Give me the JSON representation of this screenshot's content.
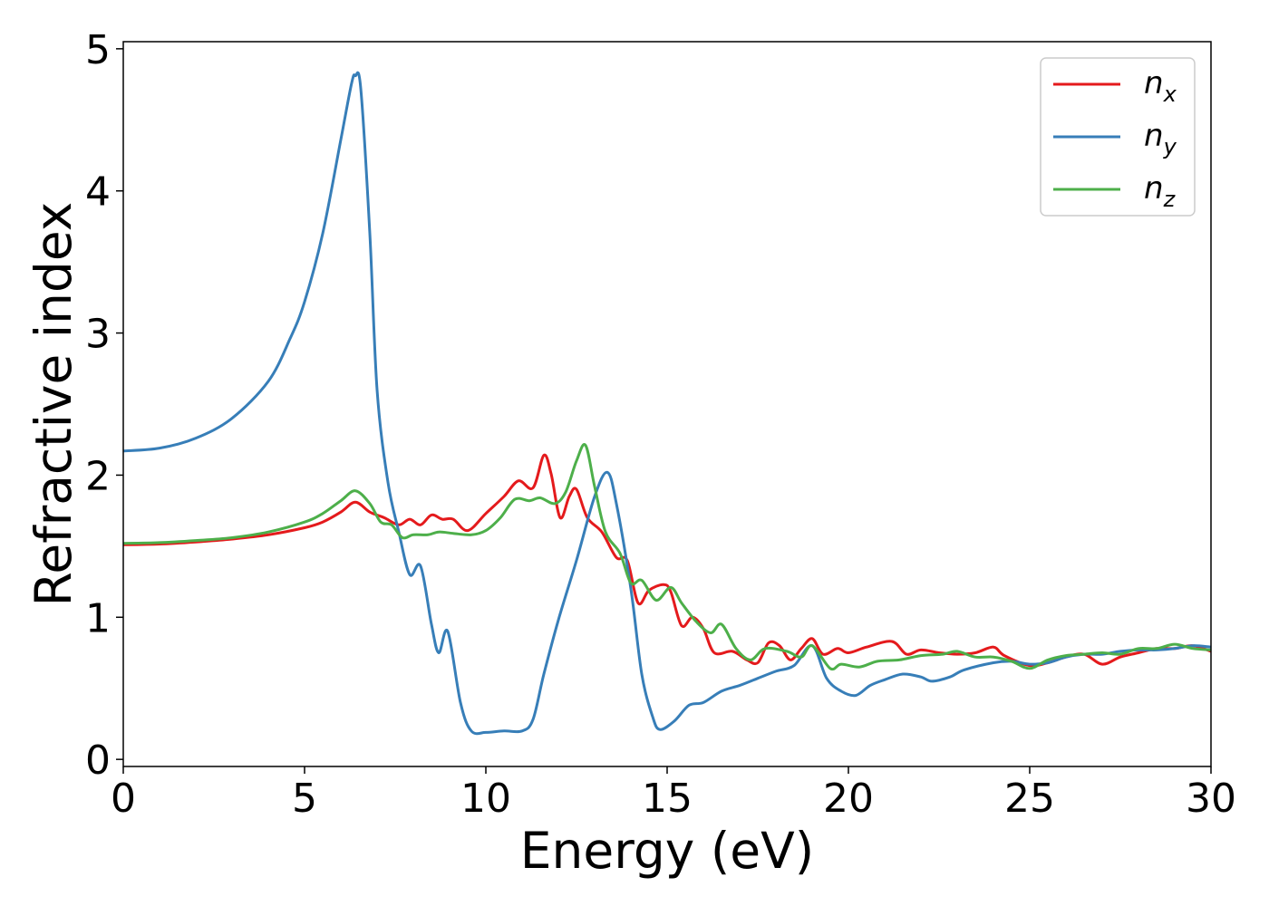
{
  "chart_data": {
    "type": "line",
    "title": "",
    "xlabel": "Energy (eV)",
    "ylabel": "Refractive index",
    "xlim": [
      0,
      30
    ],
    "ylim": [
      -0.05,
      5.05
    ],
    "xticks": [
      0,
      5,
      10,
      15,
      20,
      25,
      30
    ],
    "yticks": [
      0,
      1,
      2,
      3,
      4,
      5
    ],
    "grid": false,
    "legend_position": "top-right",
    "series": [
      {
        "name": "n_x",
        "legend_base": "n",
        "legend_sub": "x",
        "color": "#e41a1c",
        "points": [
          [
            0,
            1.51
          ],
          [
            1,
            1.515
          ],
          [
            2,
            1.53
          ],
          [
            3,
            1.55
          ],
          [
            4,
            1.58
          ],
          [
            5,
            1.63
          ],
          [
            5.5,
            1.67
          ],
          [
            6,
            1.74
          ],
          [
            6.4,
            1.81
          ],
          [
            6.8,
            1.74
          ],
          [
            7.2,
            1.7
          ],
          [
            7.6,
            1.65
          ],
          [
            7.9,
            1.69
          ],
          [
            8.2,
            1.65
          ],
          [
            8.5,
            1.72
          ],
          [
            8.8,
            1.69
          ],
          [
            9.1,
            1.69
          ],
          [
            9.5,
            1.61
          ],
          [
            10,
            1.73
          ],
          [
            10.5,
            1.85
          ],
          [
            10.9,
            1.96
          ],
          [
            11.3,
            1.91
          ],
          [
            11.6,
            2.14
          ],
          [
            11.8,
            2.01
          ],
          [
            12.05,
            1.7
          ],
          [
            12.3,
            1.85
          ],
          [
            12.5,
            1.9
          ],
          [
            12.8,
            1.7
          ],
          [
            13.2,
            1.6
          ],
          [
            13.6,
            1.42
          ],
          [
            13.9,
            1.4
          ],
          [
            14.2,
            1.1
          ],
          [
            14.5,
            1.19
          ],
          [
            14.9,
            1.23
          ],
          [
            15.1,
            1.18
          ],
          [
            15.4,
            0.94
          ],
          [
            15.7,
            1.0
          ],
          [
            16,
            0.92
          ],
          [
            16.3,
            0.75
          ],
          [
            16.8,
            0.76
          ],
          [
            17.2,
            0.7
          ],
          [
            17.5,
            0.68
          ],
          [
            17.8,
            0.82
          ],
          [
            18.1,
            0.8
          ],
          [
            18.4,
            0.7
          ],
          [
            18.7,
            0.78
          ],
          [
            19,
            0.85
          ],
          [
            19.3,
            0.74
          ],
          [
            19.7,
            0.78
          ],
          [
            20,
            0.75
          ],
          [
            20.5,
            0.79
          ],
          [
            21.2,
            0.83
          ],
          [
            21.6,
            0.74
          ],
          [
            22,
            0.77
          ],
          [
            22.5,
            0.75
          ],
          [
            23,
            0.74
          ],
          [
            23.5,
            0.75
          ],
          [
            24,
            0.79
          ],
          [
            24.3,
            0.73
          ],
          [
            25,
            0.66
          ],
          [
            25.5,
            0.68
          ],
          [
            26,
            0.72
          ],
          [
            26.5,
            0.74
          ],
          [
            27,
            0.67
          ],
          [
            27.5,
            0.72
          ],
          [
            28,
            0.75
          ],
          [
            28.5,
            0.78
          ],
          [
            29,
            0.78
          ],
          [
            29.5,
            0.8
          ],
          [
            30,
            0.76
          ]
        ]
      },
      {
        "name": "n_y",
        "legend_base": "n",
        "legend_sub": "y",
        "color": "#377eb8",
        "points": [
          [
            0,
            2.17
          ],
          [
            1,
            2.19
          ],
          [
            2,
            2.26
          ],
          [
            3,
            2.4
          ],
          [
            4,
            2.66
          ],
          [
            4.6,
            2.96
          ],
          [
            5,
            3.22
          ],
          [
            5.5,
            3.7
          ],
          [
            6,
            4.36
          ],
          [
            6.3,
            4.76
          ],
          [
            6.4,
            4.81
          ],
          [
            6.55,
            4.72
          ],
          [
            6.8,
            3.7
          ],
          [
            7.0,
            2.6
          ],
          [
            7.3,
            1.95
          ],
          [
            7.6,
            1.6
          ],
          [
            7.9,
            1.3
          ],
          [
            8.2,
            1.36
          ],
          [
            8.5,
            0.95
          ],
          [
            8.7,
            0.75
          ],
          [
            8.95,
            0.9
          ],
          [
            9.3,
            0.4
          ],
          [
            9.6,
            0.2
          ],
          [
            10,
            0.19
          ],
          [
            10.5,
            0.2
          ],
          [
            11.0,
            0.2
          ],
          [
            11.3,
            0.28
          ],
          [
            11.6,
            0.6
          ],
          [
            12.0,
            0.98
          ],
          [
            12.5,
            1.4
          ],
          [
            13.0,
            1.85
          ],
          [
            13.35,
            2.02
          ],
          [
            13.6,
            1.8
          ],
          [
            14.0,
            1.2
          ],
          [
            14.3,
            0.6
          ],
          [
            14.6,
            0.3
          ],
          [
            14.8,
            0.21
          ],
          [
            15.2,
            0.27
          ],
          [
            15.6,
            0.38
          ],
          [
            16,
            0.4
          ],
          [
            16.5,
            0.48
          ],
          [
            17,
            0.52
          ],
          [
            17.5,
            0.57
          ],
          [
            18,
            0.62
          ],
          [
            18.5,
            0.66
          ],
          [
            19,
            0.8
          ],
          [
            19.4,
            0.57
          ],
          [
            19.8,
            0.48
          ],
          [
            20.2,
            0.45
          ],
          [
            20.6,
            0.52
          ],
          [
            21,
            0.56
          ],
          [
            21.5,
            0.6
          ],
          [
            22,
            0.58
          ],
          [
            22.3,
            0.55
          ],
          [
            22.8,
            0.58
          ],
          [
            23.2,
            0.63
          ],
          [
            24,
            0.68
          ],
          [
            24.5,
            0.69
          ],
          [
            25,
            0.67
          ],
          [
            25.5,
            0.68
          ],
          [
            26,
            0.72
          ],
          [
            26.5,
            0.74
          ],
          [
            27,
            0.74
          ],
          [
            27.5,
            0.76
          ],
          [
            28,
            0.77
          ],
          [
            28.5,
            0.77
          ],
          [
            29,
            0.78
          ],
          [
            29.5,
            0.8
          ],
          [
            30,
            0.79
          ]
        ]
      },
      {
        "name": "n_z",
        "legend_base": "n",
        "legend_sub": "z",
        "color": "#4daf4a",
        "points": [
          [
            0,
            1.52
          ],
          [
            1,
            1.525
          ],
          [
            2,
            1.54
          ],
          [
            3,
            1.56
          ],
          [
            4,
            1.6
          ],
          [
            5,
            1.67
          ],
          [
            5.5,
            1.73
          ],
          [
            6,
            1.82
          ],
          [
            6.4,
            1.89
          ],
          [
            6.8,
            1.8
          ],
          [
            7.1,
            1.67
          ],
          [
            7.4,
            1.65
          ],
          [
            7.7,
            1.56
          ],
          [
            8.0,
            1.58
          ],
          [
            8.4,
            1.58
          ],
          [
            8.7,
            1.6
          ],
          [
            9.1,
            1.59
          ],
          [
            9.6,
            1.58
          ],
          [
            10,
            1.61
          ],
          [
            10.4,
            1.7
          ],
          [
            10.8,
            1.83
          ],
          [
            11.2,
            1.82
          ],
          [
            11.5,
            1.84
          ],
          [
            11.9,
            1.8
          ],
          [
            12.2,
            1.88
          ],
          [
            12.5,
            2.1
          ],
          [
            12.75,
            2.21
          ],
          [
            13.0,
            1.92
          ],
          [
            13.3,
            1.6
          ],
          [
            13.7,
            1.45
          ],
          [
            14.0,
            1.24
          ],
          [
            14.3,
            1.26
          ],
          [
            14.7,
            1.12
          ],
          [
            15.1,
            1.21
          ],
          [
            15.4,
            1.1
          ],
          [
            15.8,
            0.97
          ],
          [
            16.2,
            0.89
          ],
          [
            16.5,
            0.95
          ],
          [
            16.9,
            0.78
          ],
          [
            17.3,
            0.7
          ],
          [
            17.7,
            0.78
          ],
          [
            18.3,
            0.76
          ],
          [
            18.7,
            0.72
          ],
          [
            19.0,
            0.8
          ],
          [
            19.5,
            0.64
          ],
          [
            19.8,
            0.67
          ],
          [
            20.3,
            0.65
          ],
          [
            20.8,
            0.69
          ],
          [
            21.4,
            0.7
          ],
          [
            22,
            0.73
          ],
          [
            22.6,
            0.74
          ],
          [
            23,
            0.76
          ],
          [
            23.5,
            0.72
          ],
          [
            24,
            0.72
          ],
          [
            24.5,
            0.69
          ],
          [
            25,
            0.64
          ],
          [
            25.5,
            0.7
          ],
          [
            26,
            0.73
          ],
          [
            26.5,
            0.74
          ],
          [
            27,
            0.75
          ],
          [
            27.5,
            0.74
          ],
          [
            28,
            0.78
          ],
          [
            28.5,
            0.78
          ],
          [
            29,
            0.81
          ],
          [
            29.5,
            0.78
          ],
          [
            30,
            0.77
          ]
        ]
      }
    ]
  }
}
